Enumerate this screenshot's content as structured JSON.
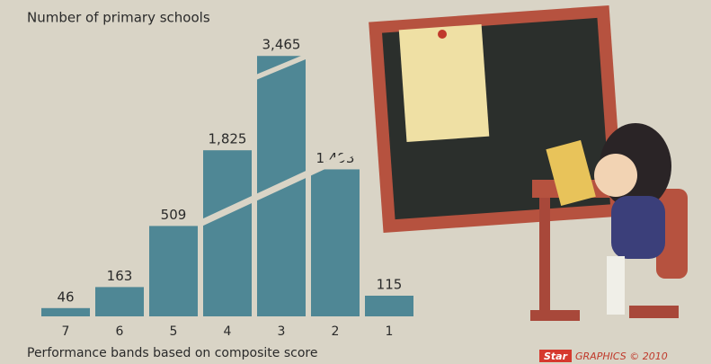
{
  "chart_data": {
    "type": "bar",
    "title": "Number of primary schools",
    "x_label": "Performance bands based on composite score",
    "categories": [
      "7",
      "6",
      "5",
      "4",
      "3",
      "2",
      "1"
    ],
    "values": [
      46,
      163,
      509,
      1825,
      3465,
      1493,
      115
    ],
    "value_labels": [
      "46",
      "163",
      "509",
      "1,825",
      "3,465",
      "1,493",
      "115"
    ],
    "color": "#4f8795",
    "credit_brand": "Star",
    "credit": "GRAPHICS © 2010"
  }
}
